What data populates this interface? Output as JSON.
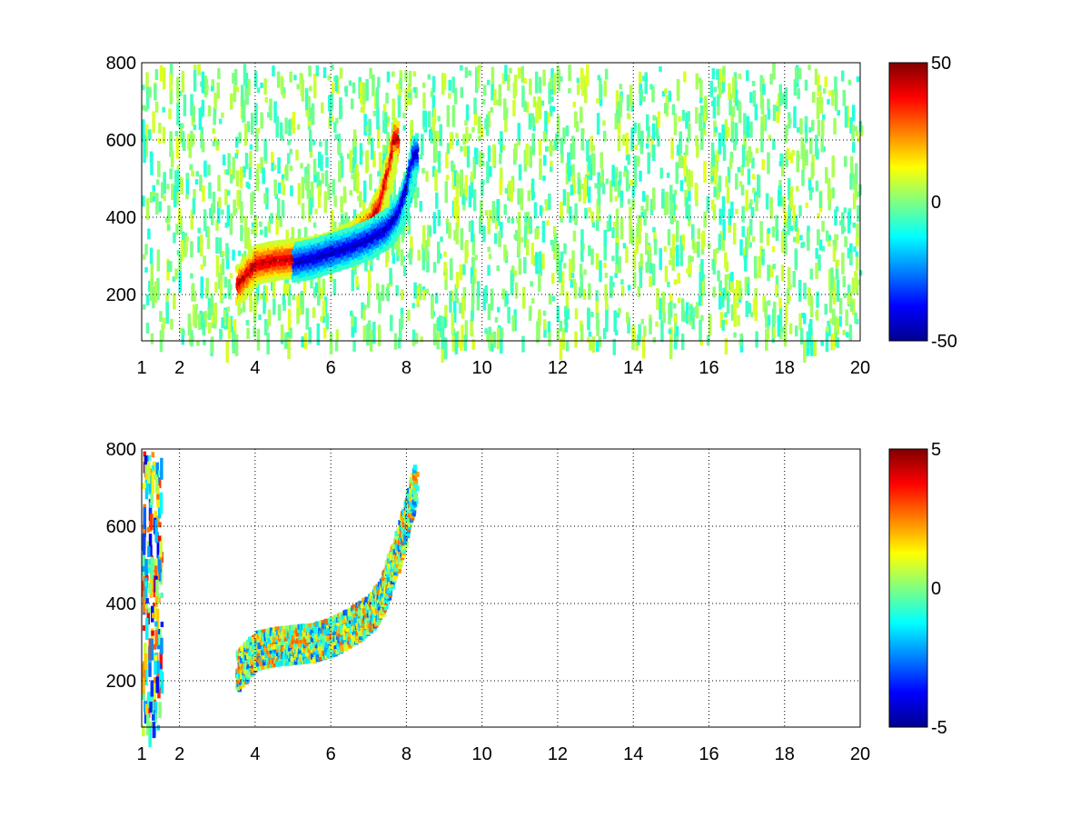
{
  "colormap": [
    "#00008f",
    "#0000ff",
    "#0080ff",
    "#00ffff",
    "#80ff80",
    "#ffff00",
    "#ff8000",
    "#ff0000",
    "#800000"
  ],
  "chart_data": [
    {
      "type": "heatmap",
      "title": "",
      "xlabel": "",
      "ylabel": "",
      "xlim": [
        1,
        20
      ],
      "ylim": [
        80,
        800
      ],
      "x_ticks": [
        1,
        2,
        4,
        6,
        8,
        10,
        12,
        14,
        16,
        18,
        20
      ],
      "y_ticks": [
        200,
        400,
        600,
        800
      ],
      "grid": true,
      "colorbar": {
        "min": -50,
        "max": 50,
        "ticks": [
          -50,
          0,
          50
        ]
      },
      "features": [
        {
          "name": "positive ridge",
          "x": [
            3.5,
            4.0,
            4.5,
            5.0,
            5.5,
            6.0,
            6.5,
            7.0,
            7.3,
            7.5,
            7.7
          ],
          "y": [
            230,
            285,
            295,
            300,
            305,
            320,
            345,
            385,
            440,
            520,
            620
          ],
          "value": 45
        },
        {
          "name": "negative ridge",
          "x": [
            5.0,
            5.5,
            6.0,
            6.5,
            7.0,
            7.5,
            7.8,
            8.0,
            8.2
          ],
          "y": [
            290,
            300,
            315,
            330,
            350,
            380,
            420,
            480,
            580
          ],
          "value": -45
        }
      ],
      "noise": {
        "x_range": [
          1,
          20
        ],
        "values": [
          -10,
          10
        ]
      }
    },
    {
      "type": "heatmap",
      "title": "",
      "xlabel": "",
      "ylabel": "",
      "xlim": [
        1,
        20
      ],
      "ylim": [
        80,
        800
      ],
      "x_ticks": [
        1,
        2,
        4,
        6,
        8,
        10,
        12,
        14,
        16,
        18,
        20
      ],
      "y_ticks": [
        200,
        400,
        600,
        800
      ],
      "grid": true,
      "colorbar": {
        "min": -5,
        "max": 5,
        "ticks": [
          -5,
          0,
          5
        ]
      },
      "features": [
        {
          "name": "curve band",
          "x": [
            3.5,
            4.0,
            4.5,
            5.0,
            5.5,
            6.0,
            6.5,
            7.0,
            7.3,
            7.5,
            7.8,
            8.0,
            8.2
          ],
          "y": [
            230,
            285,
            295,
            300,
            305,
            320,
            345,
            380,
            420,
            480,
            560,
            640,
            720
          ],
          "value": 0
        }
      ],
      "noise": {
        "x_range": [
          1,
          1.5
        ],
        "values": [
          -4,
          4
        ]
      }
    }
  ]
}
